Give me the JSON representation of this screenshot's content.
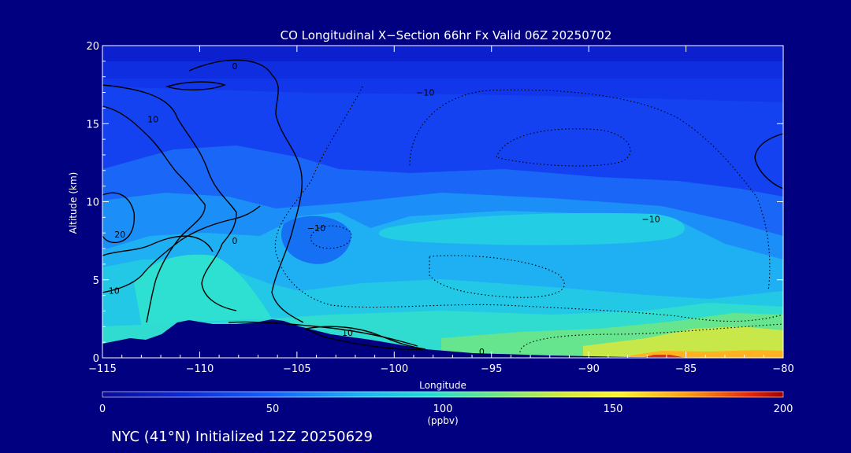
{
  "chart_data": {
    "type": "heatmap",
    "title": "CO Longitudinal X−Section 66hr  Fx Valid 06Z 20250702",
    "xlabel": "Longitude",
    "ylabel": "Altitude (km)",
    "xlim": [
      -115,
      -80
    ],
    "ylim": [
      0,
      20
    ],
    "x_ticks": [
      -115,
      -110,
      -105,
      -100,
      -95,
      -90,
      -85,
      -80
    ],
    "x_tick_labels": [
      "−115",
      "−110",
      "−105",
      "−100",
      "−95",
      "−90",
      "−85",
      "−80"
    ],
    "y_ticks": [
      0,
      5,
      10,
      15,
      20
    ],
    "y_tick_labels": [
      "0",
      "5",
      "10",
      "15",
      "20"
    ],
    "colorbar": {
      "min": 0,
      "max": 200,
      "ticks": [
        0,
        50,
        100,
        150,
        200
      ],
      "tick_labels": [
        "0",
        "50",
        "100",
        "150",
        "200"
      ],
      "unit": "(ppbv)"
    },
    "contour_labels": [
      {
        "text": "0",
        "lon": -108.2,
        "alt": 18.7
      },
      {
        "text": "10",
        "lon": -112.4,
        "alt": 15.3
      },
      {
        "text": "20",
        "lon": -114.1,
        "alt": 7.9
      },
      {
        "text": "10",
        "lon": -114.4,
        "alt": 4.3
      },
      {
        "text": "0",
        "lon": -108.2,
        "alt": 7.5
      },
      {
        "text": "−10",
        "lon": -98.4,
        "alt": 17.0
      },
      {
        "text": "−10",
        "lon": -104.0,
        "alt": 8.3
      },
      {
        "text": "−10",
        "lon": -86.8,
        "alt": 8.9
      },
      {
        "text": "10",
        "lon": -102.4,
        "alt": 1.6
      },
      {
        "text": "0",
        "lon": -95.5,
        "alt": 0.4
      }
    ],
    "grid": false,
    "footer": "NYC (41°N) Initialized 12Z 20250629"
  },
  "colors": {
    "background": "#000080",
    "text": "#ffffff",
    "contour": "#000000"
  }
}
